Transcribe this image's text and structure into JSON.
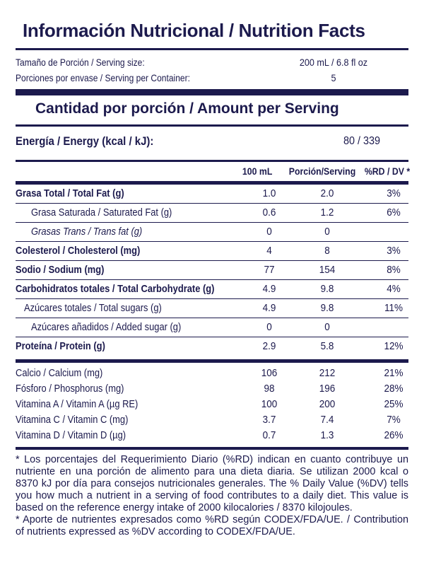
{
  "title": "Información Nutricional / Nutrition Facts",
  "serving": {
    "size_label": "Tamaño de Porción / Serving size:",
    "size_value": "200 mL / 6.8 fl oz",
    "per_container_label": "Porciones por envase / Serving per Container:",
    "per_container_value": "5"
  },
  "amount_heading": "Cantidad por porción / Amount per Serving",
  "energy": {
    "label": "Energía / Energy (kcal / kJ):",
    "value": "80 / 339"
  },
  "columns": {
    "per_100ml": "100 mL",
    "per_serving": "Porción/Serving",
    "daily_value": "%RD / DV *"
  },
  "nutrients": [
    {
      "name": "Grasa Total / Total Fat (g)",
      "v100": "1.0",
      "vserv": "2.0",
      "dv": "3%",
      "style": "bold",
      "indent": 0
    },
    {
      "name": "Grasa Saturada / Saturated Fat (g)",
      "v100": "0.6",
      "vserv": "1.2",
      "dv": "6%",
      "style": "normal",
      "indent": 22
    },
    {
      "name": "Grasas Trans / Trans fat (g)",
      "v100": "0",
      "vserv": "0",
      "dv": "",
      "style": "ital",
      "indent": 22
    },
    {
      "name": "Colesterol / Cholesterol (mg)",
      "v100": "4",
      "vserv": "8",
      "dv": "3%",
      "style": "bold",
      "indent": 0
    },
    {
      "name": "Sodio / Sodium (mg)",
      "v100": "77",
      "vserv": "154",
      "dv": "8%",
      "style": "bold",
      "indent": 0
    },
    {
      "name": "Carbohidratos totales / Total Carbohydrate (g)",
      "v100": "4.9",
      "vserv": "9.8",
      "dv": "4%",
      "style": "bold",
      "indent": 0
    },
    {
      "name": "Azúcares totales / Total sugars (g)",
      "v100": "4.9",
      "vserv": "9.8",
      "dv": "11%",
      "style": "normal",
      "indent": 12
    },
    {
      "name": "Azúcares añadidos / Added sugar (g)",
      "v100": "0",
      "vserv": "0",
      "dv": "",
      "style": "normal",
      "indent": 22
    },
    {
      "name": "Proteína / Protein (g)",
      "v100": "2.9",
      "vserv": "5.8",
      "dv": "12%",
      "style": "bold",
      "indent": 0
    }
  ],
  "minerals": [
    {
      "name": "Calcio / Calcium (mg)",
      "v100": "106",
      "vserv": "212",
      "dv": "21%"
    },
    {
      "name": "Fósforo / Phosphorus (mg)",
      "v100": "98",
      "vserv": "196",
      "dv": "28%"
    },
    {
      "name": "Vitamina A / Vitamin A (µg RE)",
      "v100": "100",
      "vserv": "200",
      "dv": "25%"
    },
    {
      "name": "Vitamina C / Vitamin C (mg)",
      "v100": "3.7",
      "vserv": "7.4",
      "dv": "7%"
    },
    {
      "name": "Vitamina D / Vitamin D (µg)",
      "v100": "0.7",
      "vserv": "1.3",
      "dv": "26%"
    }
  ],
  "footnotes": [
    "* Los porcentajes del Requerimiento Diario (%RD) indican en cuanto contribuye un nutriente en una porción de alimento para una dieta diaria. Se utilizan 2000 kcal o 8370 kJ por día para consejos nutricionales generales. The % Daily Value (%DV) tells you how much a nutrient in a serving of food contributes to a daily diet. This value is based on the reference energy intake of 2000 kilocalories / 8370 kilojoules.",
    "* Aporte de nutrientes expresados como %RD según CODEX/FDA/UE. / Contribution of nutrients expressed as %DV according to CODEX/FDA/UE."
  ],
  "colors": {
    "ink": "#1c1a4d",
    "background": "#ffffff"
  }
}
